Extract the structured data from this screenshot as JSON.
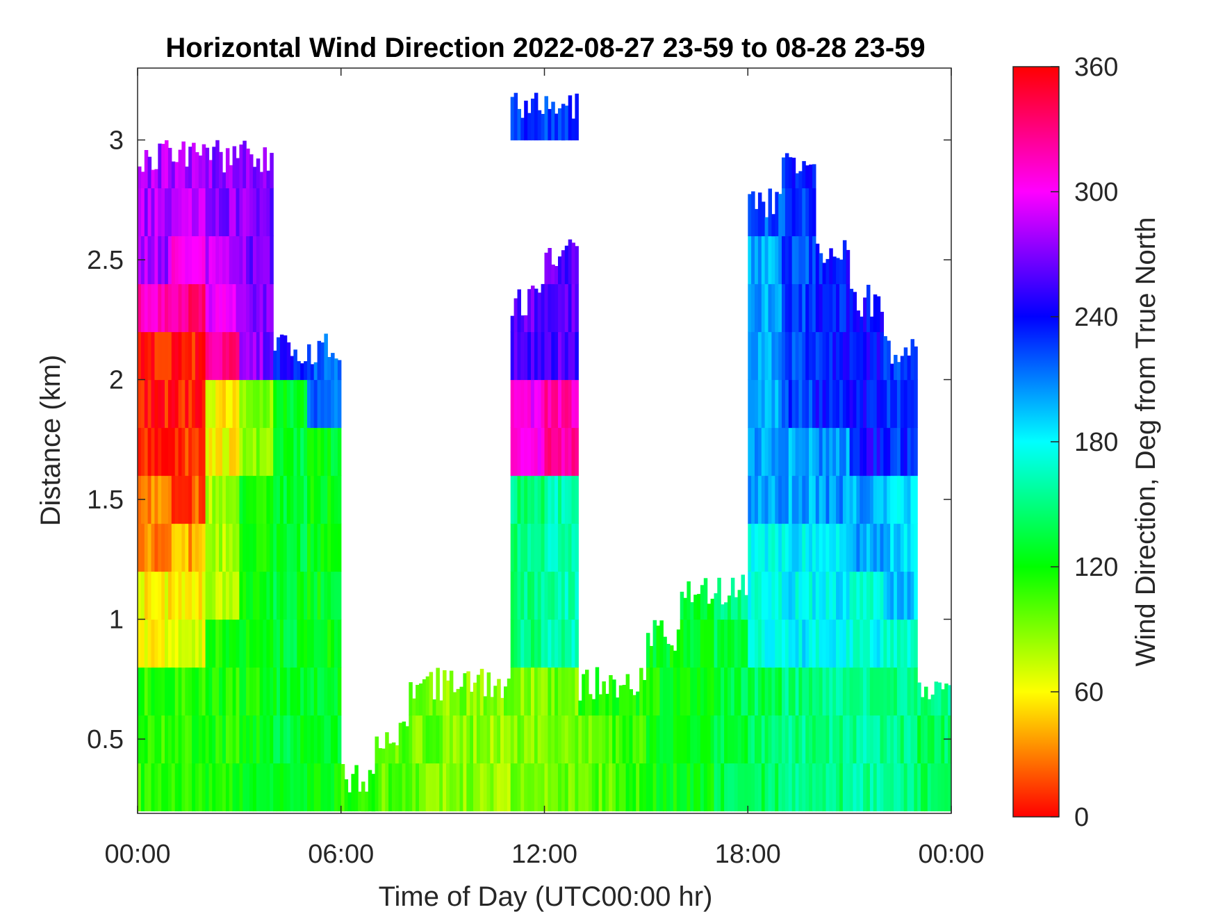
{
  "chart_data": {
    "type": "heatmap",
    "title": "Horizontal Wind Direction 2022-08-27 23-59 to 08-28 23-59",
    "xlabel": "Time of Day (UTC00:00 hr)",
    "ylabel": "Distance (km)",
    "xlim_hours": [
      0,
      24
    ],
    "ylim": [
      0.19,
      3.3
    ],
    "xticks": [
      0,
      6,
      12,
      18,
      24
    ],
    "xtick_labels": [
      "00:00",
      "06:00",
      "12:00",
      "18:00",
      "00:00"
    ],
    "yticks": [
      0.5,
      1,
      1.5,
      2,
      2.5,
      3
    ],
    "ytick_labels": [
      "0.5",
      "1",
      "1.5",
      "2",
      "2.5",
      "3"
    ],
    "colorbar": {
      "label": "Wind Direction, Deg from True North",
      "range": [
        0,
        360
      ],
      "ticks": [
        0,
        60,
        120,
        180,
        240,
        300,
        360
      ],
      "tick_labels": [
        "0",
        "60",
        "120",
        "180",
        "240",
        "300",
        "360"
      ],
      "colormap": "hsv"
    },
    "grid": false,
    "time_bin_hours": 1,
    "height_bins_km": [
      0.2,
      0.4,
      0.6,
      0.8,
      1.0,
      1.2,
      1.4,
      1.6,
      1.8,
      2.0,
      2.2,
      2.4,
      2.6,
      2.8,
      3.0,
      3.2
    ],
    "values_by_hour": [
      [
        110,
        110,
        110,
        60,
        60,
        30,
        30,
        5,
        5,
        5,
        320,
        280,
        280,
        280,
        null
      ],
      [
        110,
        110,
        110,
        70,
        60,
        40,
        20,
        10,
        5,
        5,
        330,
        300,
        280,
        280,
        null
      ],
      [
        115,
        115,
        115,
        115,
        80,
        80,
        80,
        60,
        60,
        330,
        290,
        290,
        275,
        275,
        null
      ],
      [
        120,
        120,
        120,
        120,
        120,
        120,
        120,
        90,
        90,
        270,
        270,
        270,
        270,
        270,
        null
      ],
      [
        130,
        130,
        130,
        130,
        130,
        130,
        130,
        130,
        130,
        240,
        null,
        null,
        null,
        null,
        null
      ],
      [
        120,
        125,
        125,
        125,
        125,
        125,
        125,
        125,
        220,
        220,
        null,
        null,
        null,
        null,
        null
      ],
      [
        110,
        null,
        null,
        null,
        null,
        null,
        null,
        null,
        null,
        null,
        null,
        null,
        null,
        null,
        null
      ],
      [
        100,
        100,
        null,
        null,
        null,
        null,
        null,
        null,
        null,
        null,
        null,
        null,
        null,
        null,
        null
      ],
      [
        95,
        95,
        100,
        null,
        null,
        null,
        null,
        null,
        null,
        null,
        null,
        null,
        null,
        null,
        null
      ],
      [
        90,
        90,
        90,
        null,
        null,
        null,
        null,
        null,
        null,
        null,
        null,
        null,
        null,
        null,
        null
      ],
      [
        85,
        85,
        90,
        null,
        null,
        null,
        null,
        null,
        null,
        null,
        null,
        null,
        null,
        null,
        null
      ],
      [
        90,
        90,
        90,
        150,
        150,
        150,
        150,
        300,
        300,
        260,
        260,
        null,
        null,
        null,
        230
      ],
      [
        95,
        95,
        95,
        160,
        160,
        160,
        160,
        320,
        320,
        260,
        260,
        260,
        null,
        null,
        225
      ],
      [
        100,
        100,
        110,
        null,
        null,
        null,
        null,
        null,
        null,
        null,
        null,
        null,
        null,
        null,
        null
      ],
      [
        110,
        110,
        115,
        null,
        null,
        null,
        null,
        null,
        null,
        null,
        null,
        null,
        null,
        null,
        null
      ],
      [
        120,
        120,
        120,
        125,
        null,
        null,
        null,
        null,
        null,
        null,
        null,
        null,
        null,
        null,
        null
      ],
      [
        125,
        125,
        125,
        125,
        130,
        null,
        null,
        null,
        null,
        null,
        null,
        null,
        null,
        null,
        null
      ],
      [
        135,
        135,
        135,
        135,
        150,
        null,
        null,
        null,
        null,
        null,
        null,
        null,
        null,
        null,
        null
      ],
      [
        140,
        140,
        140,
        175,
        175,
        175,
        200,
        200,
        200,
        200,
        200,
        200,
        220,
        null,
        null
      ],
      [
        150,
        150,
        150,
        180,
        180,
        180,
        200,
        200,
        225,
        225,
        225,
        225,
        225,
        235,
        null
      ],
      [
        150,
        150,
        150,
        180,
        180,
        180,
        205,
        205,
        235,
        235,
        235,
        235,
        null,
        null,
        null
      ],
      [
        155,
        155,
        155,
        175,
        175,
        200,
        200,
        240,
        240,
        240,
        240,
        null,
        null,
        null,
        null
      ],
      [
        150,
        150,
        150,
        170,
        190,
        190,
        190,
        230,
        230,
        230,
        null,
        null,
        null,
        null,
        null
      ],
      [
        140,
        140,
        150,
        null,
        null,
        null,
        null,
        null,
        null,
        null,
        null,
        null,
        null,
        null,
        null
      ]
    ]
  }
}
